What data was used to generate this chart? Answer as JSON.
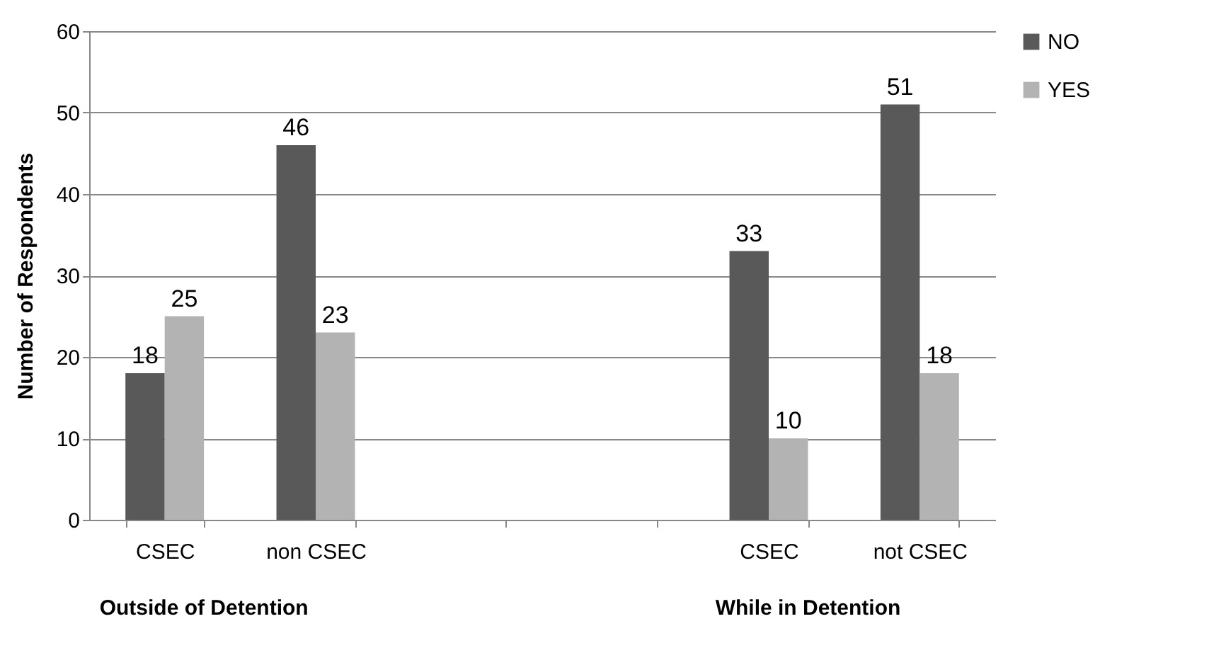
{
  "chart_data": {
    "type": "bar",
    "ylabel": "Number of Respondents",
    "categories": [
      "CSEC",
      "non CSEC",
      null,
      null,
      "CSEC",
      "not CSEC"
    ],
    "series": [
      {
        "name": "NO",
        "color": "#595959",
        "values": [
          18,
          46,
          null,
          null,
          33,
          51
        ]
      },
      {
        "name": "YES",
        "color": "#b3b3b3",
        "values": [
          25,
          23,
          null,
          null,
          10,
          18
        ]
      }
    ],
    "ylim": [
      0,
      60
    ],
    "yticks": [
      0,
      10,
      20,
      30,
      40,
      50,
      60
    ],
    "grid": "y",
    "legend": "right",
    "data_labels": true,
    "annotations": [
      {
        "text": "Outside of Detention"
      },
      {
        "text": "While in Detention"
      }
    ]
  }
}
